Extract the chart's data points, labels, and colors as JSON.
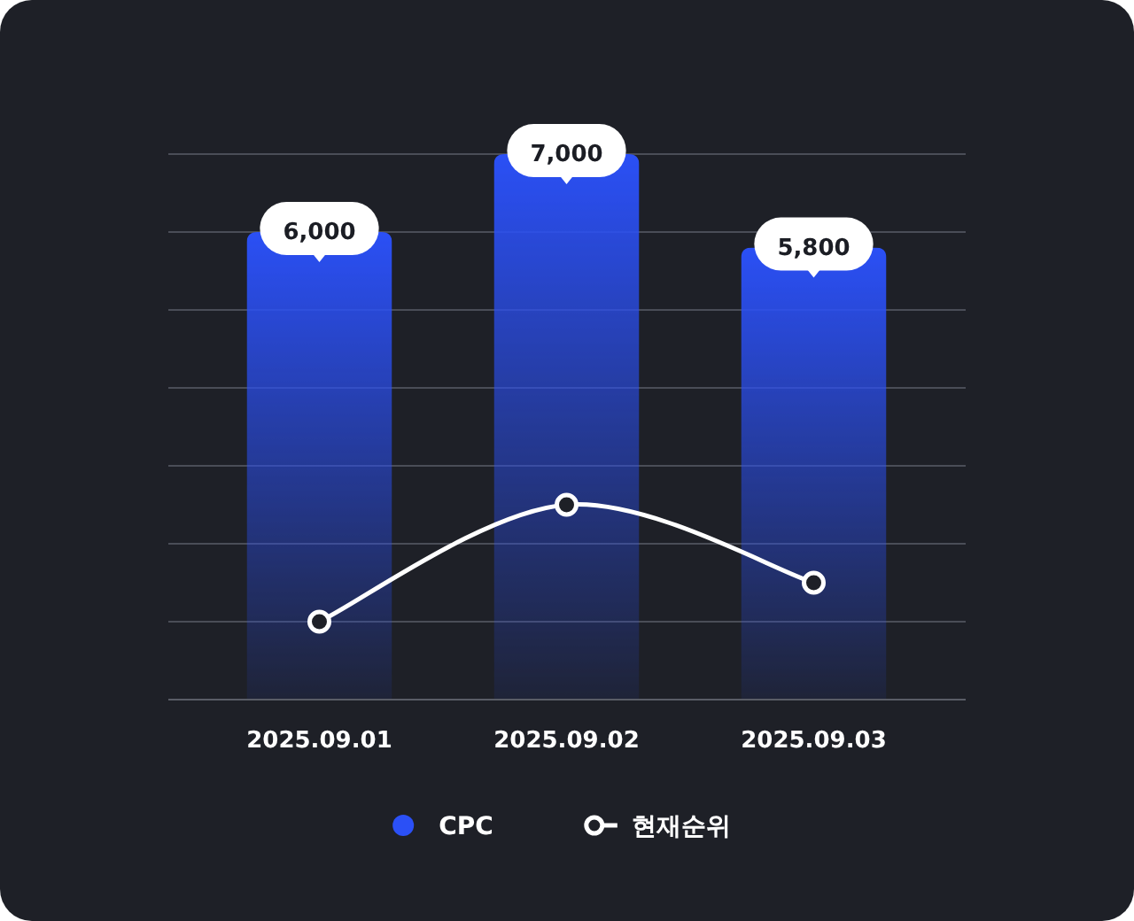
{
  "chart_data": {
    "type": "bar",
    "categories": [
      "2025.09.01",
      "2025.09.02",
      "2025.09.03"
    ],
    "series": [
      {
        "name": "CPC",
        "color": "#2b50f6",
        "values": [
          6000,
          7000,
          5800
        ],
        "value_labels": [
          "6,000",
          "7,000",
          "5,800"
        ]
      },
      {
        "name": "현재순위",
        "type": "line",
        "color": "#ffffff",
        "values": [
          1000,
          2500,
          1500
        ]
      }
    ],
    "ylim": [
      0,
      7000
    ],
    "yticks": [
      {
        "value": 0,
        "label": null
      },
      {
        "value": 1000,
        "label": null
      },
      {
        "value": 2000,
        "label": null
      },
      {
        "value": 3000,
        "label": null
      },
      {
        "value": 4000,
        "label": null
      },
      {
        "value": 5000,
        "label": null
      },
      {
        "value": 6000,
        "label": null
      },
      {
        "value": 7000,
        "label": null
      }
    ],
    "grid": "y",
    "legend": "bottom",
    "tick_labels": "x",
    "marker": "circle"
  }
}
